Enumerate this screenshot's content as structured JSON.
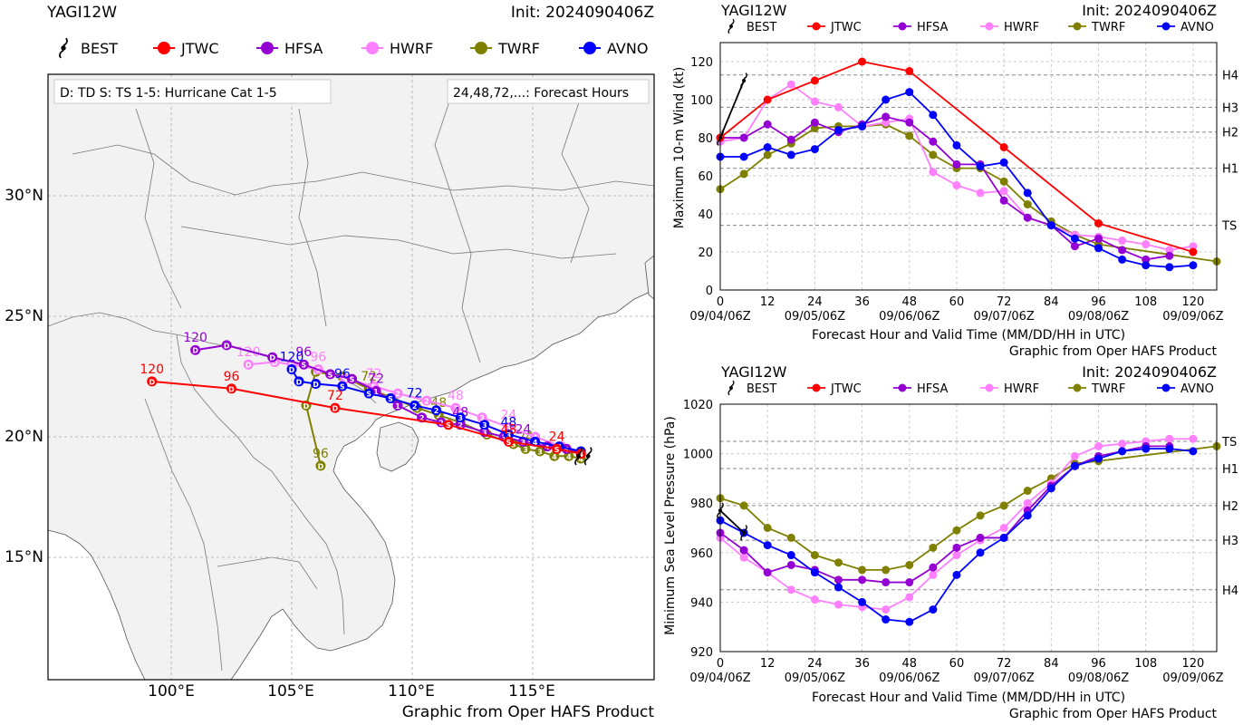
{
  "map": {
    "storm": "YAGI12W",
    "init": "Init: 2024090406Z",
    "legend_note_left": "D: TD  S: TS  1-5: Hurricane Cat 1-5",
    "legend_note_right": "24,48,72,...: Forecast Hours",
    "credit": "Graphic from Oper HAFS Product",
    "lon_ticks": [
      "100°E",
      "105°E",
      "110°E",
      "115°E"
    ],
    "lat_ticks": [
      "30°N",
      "25°N",
      "20°N",
      "15°N"
    ],
    "legend": [
      {
        "name": "BEST",
        "color": "#000000",
        "icon": "hurricane-symbol-icon"
      },
      {
        "name": "JTWC",
        "color": "#ff0000",
        "icon": "circle-marker-icon"
      },
      {
        "name": "HFSA",
        "color": "#9400d3",
        "icon": "circle-marker-icon"
      },
      {
        "name": "HWRF",
        "color": "#ff80ff",
        "icon": "circle-marker-icon"
      },
      {
        "name": "TWRF",
        "color": "#808000",
        "icon": "circle-marker-icon"
      },
      {
        "name": "AVNO",
        "color": "#0000ff",
        "icon": "circle-marker-icon"
      }
    ],
    "hour_labels": {
      "JTWC": [
        "24",
        "48",
        "72",
        "96",
        "120"
      ],
      "HFSA": [
        "24",
        "48",
        "72",
        "96",
        "120"
      ],
      "HWRF": [
        "24",
        "48",
        "72",
        "96",
        "120"
      ],
      "TWRF": [
        "24",
        "48",
        "72",
        "96"
      ],
      "AVNO": [
        "48",
        "72",
        "96",
        "120"
      ]
    }
  },
  "chart_data": [
    {
      "type": "scatter",
      "title": "YAGI12W",
      "subtitle": "Init: 2024090406Z",
      "xlabel": "Longitude",
      "ylabel": "Latitude",
      "xlim": [
        95,
        120
      ],
      "ylim": [
        10,
        35
      ],
      "series": [
        {
          "name": "BEST",
          "lon": [
            117.3,
            116.9
          ],
          "lat": [
            19.2,
            19.2
          ]
        },
        {
          "name": "JTWC",
          "lon": [
            117.0,
            116.0,
            114.0,
            111.5,
            106.8,
            102.5,
            99.2
          ],
          "lat": [
            19.3,
            19.5,
            19.8,
            20.5,
            21.2,
            22.0,
            22.3
          ]
        },
        {
          "name": "HFSA",
          "lon": [
            117.0,
            116.4,
            115.6,
            114.6,
            113.8,
            113.0,
            112.0,
            111.2,
            110.4,
            109.4,
            108.5,
            107.5,
            106.6,
            105.5,
            104.2,
            102.3,
            101.0
          ],
          "lat": [
            19.3,
            19.5,
            19.6,
            19.8,
            20.0,
            20.2,
            20.5,
            20.6,
            20.8,
            21.3,
            21.9,
            22.4,
            22.6,
            23.0,
            23.3,
            23.8,
            23.6
          ]
        },
        {
          "name": "HWRF",
          "lon": [
            117.0,
            116.2,
            115.1,
            114.0,
            112.9,
            111.8,
            110.6,
            109.4,
            108.4,
            107.2,
            106.1,
            105.0,
            104.3,
            103.2
          ],
          "lat": [
            19.3,
            19.6,
            20.0,
            20.4,
            20.8,
            21.2,
            21.5,
            21.8,
            22.1,
            22.4,
            22.8,
            23.0,
            23.1,
            23.0
          ]
        },
        {
          "name": "TWRF",
          "lon": [
            117.0,
            116.5,
            115.9,
            115.3,
            114.7,
            114.2,
            113.1,
            112.0,
            111.1,
            110.2,
            109.2,
            108.2,
            107.1,
            106.0,
            105.6,
            106.2
          ],
          "lat": [
            19.1,
            19.2,
            19.2,
            19.4,
            19.5,
            19.7,
            20.1,
            20.6,
            20.9,
            21.2,
            21.6,
            22.0,
            22.5,
            22.7,
            21.3,
            18.8
          ]
        },
        {
          "name": "AVNO",
          "lon": [
            117.0,
            116.1,
            115.1,
            114.0,
            113.0,
            112.0,
            111.0,
            110.1,
            109.1,
            108.2,
            107.1,
            106.0,
            105.3,
            105.0
          ],
          "lat": [
            19.4,
            19.6,
            19.8,
            20.1,
            20.5,
            20.8,
            21.1,
            21.3,
            21.6,
            21.8,
            22.1,
            22.2,
            22.3,
            22.8
          ]
        }
      ]
    },
    {
      "type": "line",
      "title": "YAGI12W",
      "subtitle": "Init: 2024090406Z",
      "xlabel": "Forecast Hour and Valid Time (MM/DD/HH in UTC)",
      "ylabel": "Maximum 10-m Wind (kt)",
      "credit": "Graphic from Oper HAFS Product",
      "xlim": [
        0,
        126
      ],
      "ylim": [
        0,
        130
      ],
      "xticks": [
        "0",
        "12",
        "24",
        "36",
        "48",
        "60",
        "72",
        "84",
        "96",
        "108",
        "120"
      ],
      "date_ticks": [
        "09/04/06Z",
        "09/05/06Z",
        "09/06/06Z",
        "09/07/06Z",
        "09/08/06Z",
        "09/09/06Z"
      ],
      "yticks": [
        "0",
        "20",
        "40",
        "60",
        "80",
        "100",
        "120"
      ],
      "categories_right": [
        {
          "label": "H4",
          "value": 113
        },
        {
          "label": "H3",
          "value": 96
        },
        {
          "label": "H2",
          "value": 83
        },
        {
          "label": "H1",
          "value": 64
        },
        {
          "label": "TS",
          "value": 34
        }
      ],
      "series": [
        {
          "name": "BEST",
          "x": [
            0,
            6
          ],
          "values": [
            80,
            110
          ]
        },
        {
          "name": "JTWC",
          "x": [
            0,
            12,
            24,
            36,
            48,
            72,
            96,
            120
          ],
          "values": [
            80,
            100,
            110,
            120,
            115,
            75,
            35,
            20
          ]
        },
        {
          "name": "HFSA",
          "x": [
            0,
            6,
            12,
            18,
            24,
            30,
            36,
            42,
            48,
            54,
            60,
            66,
            72,
            78,
            84,
            90,
            96,
            102,
            108,
            114
          ],
          "values": [
            80,
            80,
            87,
            79,
            88,
            83,
            87,
            91,
            88,
            78,
            66,
            66,
            47,
            38,
            34,
            23,
            27,
            21,
            16,
            18
          ]
        },
        {
          "name": "HWRF",
          "x": [
            0,
            6,
            12,
            18,
            24,
            30,
            36,
            42,
            48,
            54,
            60,
            66,
            72,
            78,
            84,
            90,
            96,
            102,
            108,
            114,
            120
          ],
          "values": [
            78,
            80,
            100,
            108,
            99,
            96,
            86,
            88,
            90,
            62,
            55,
            51,
            52,
            38,
            34,
            29,
            28,
            26,
            24,
            21,
            23
          ]
        },
        {
          "name": "TWRF",
          "x": [
            0,
            6,
            12,
            18,
            24,
            30,
            36,
            42,
            48,
            54,
            60,
            66,
            72,
            78,
            84,
            90,
            96,
            126
          ],
          "values": [
            53,
            61,
            71,
            77,
            85,
            86,
            86,
            87,
            81,
            71,
            64,
            64,
            57,
            45,
            36,
            29,
            24,
            15
          ]
        },
        {
          "name": "AVNO",
          "x": [
            0,
            6,
            12,
            18,
            24,
            30,
            36,
            42,
            48,
            54,
            60,
            66,
            72,
            78,
            84,
            90,
            96,
            102,
            108,
            114,
            120
          ],
          "values": [
            70,
            70,
            75,
            71,
            74,
            84,
            86,
            100,
            104,
            92,
            76,
            65,
            67,
            51,
            34,
            27,
            22,
            16,
            13,
            12,
            13
          ]
        }
      ]
    },
    {
      "type": "line",
      "title": "YAGI12W",
      "subtitle": "Init: 2024090406Z",
      "xlabel": "Forecast Hour and Valid Time (MM/DD/HH in UTC)",
      "ylabel": "Minimum Sea Level Pressure (hPa)",
      "credit": "Graphic from Oper HAFS Product",
      "xlim": [
        0,
        126
      ],
      "ylim": [
        920,
        1020
      ],
      "xticks": [
        "0",
        "12",
        "24",
        "36",
        "48",
        "60",
        "72",
        "84",
        "96",
        "108",
        "120"
      ],
      "date_ticks": [
        "09/04/06Z",
        "09/05/06Z",
        "09/06/06Z",
        "09/07/06Z",
        "09/08/06Z",
        "09/09/06Z"
      ],
      "yticks": [
        "920",
        "940",
        "960",
        "980",
        "1000",
        "1020"
      ],
      "categories_right": [
        {
          "label": "TS",
          "value": 1005
        },
        {
          "label": "H1",
          "value": 994
        },
        {
          "label": "H2",
          "value": 979
        },
        {
          "label": "H3",
          "value": 965
        },
        {
          "label": "H4",
          "value": 945
        }
      ],
      "series": [
        {
          "name": "BEST",
          "x": [
            0,
            6
          ],
          "values": [
            977,
            968
          ]
        },
        {
          "name": "HFSA",
          "x": [
            0,
            6,
            12,
            18,
            24,
            30,
            36,
            42,
            48,
            54,
            60,
            66,
            72,
            78,
            84,
            90,
            96,
            102,
            108,
            114
          ],
          "values": [
            968,
            961,
            952,
            955,
            953,
            949,
            949,
            948,
            948,
            954,
            962,
            966,
            966,
            977,
            987,
            995,
            999,
            1001,
            1003,
            1003
          ]
        },
        {
          "name": "HWRF",
          "x": [
            0,
            6,
            12,
            18,
            24,
            30,
            36,
            42,
            48,
            54,
            60,
            66,
            72,
            78,
            84,
            90,
            96,
            102,
            108,
            114,
            120
          ],
          "values": [
            966,
            958,
            952,
            945,
            941,
            939,
            938,
            937,
            942,
            951,
            959,
            965,
            970,
            980,
            988,
            999,
            1003,
            1004,
            1005,
            1006,
            1006
          ]
        },
        {
          "name": "TWRF",
          "x": [
            0,
            6,
            12,
            18,
            24,
            30,
            36,
            42,
            48,
            54,
            60,
            66,
            72,
            78,
            84,
            90,
            96,
            126
          ],
          "values": [
            982,
            979,
            970,
            966,
            959,
            956,
            953,
            953,
            955,
            962,
            969,
            975,
            979,
            985,
            990,
            996,
            997,
            1003
          ]
        },
        {
          "name": "AVNO",
          "x": [
            0,
            6,
            12,
            18,
            24,
            30,
            36,
            42,
            48,
            54,
            60,
            66,
            72,
            78,
            84,
            90,
            96,
            102,
            108,
            114,
            120
          ],
          "values": [
            973,
            968,
            963,
            959,
            952,
            946,
            940,
            933,
            932,
            937,
            951,
            960,
            966,
            975,
            986,
            995,
            998,
            1001,
            1002,
            1002,
            1001
          ]
        }
      ]
    }
  ]
}
